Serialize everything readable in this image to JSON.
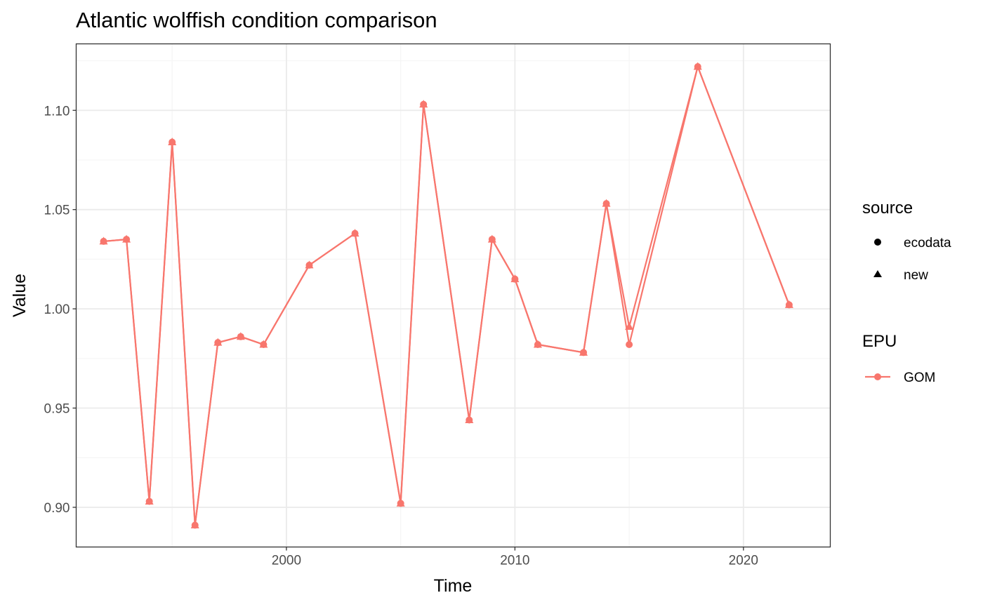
{
  "chart_data": {
    "type": "line",
    "title": "Atlantic wolffish condition comparison",
    "xlabel": "Time",
    "ylabel": "Value",
    "xlim": [
      1990.8,
      2023.8
    ],
    "ylim": [
      0.88,
      1.1335
    ],
    "x_major_ticks": [
      2000,
      2010,
      2020
    ],
    "x_minor_ticks": [
      1995,
      2005,
      2015
    ],
    "y_major_ticks": [
      0.9,
      0.95,
      1.0,
      1.05,
      1.1
    ],
    "y_minor_ticks": [
      0.925,
      0.975,
      1.025,
      1.075,
      1.125
    ],
    "x_tick_labels": [
      "2000",
      "2010",
      "2020"
    ],
    "y_tick_labels": [
      "0.90",
      "0.95",
      "1.00",
      "1.05",
      "1.10"
    ],
    "grid": true,
    "color": "#F8766D",
    "series": [
      {
        "name": "ecodata",
        "shape": "circle",
        "x": [
          1992,
          1993,
          1994,
          1995,
          1996,
          1997,
          1998,
          1999,
          2001,
          2003,
          2005,
          2006,
          2008,
          2009,
          2010,
          2011,
          2013,
          2014,
          2015,
          2018,
          2022
        ],
        "y": [
          1.034,
          1.035,
          0.903,
          1.084,
          0.891,
          0.983,
          0.986,
          0.982,
          1.022,
          1.038,
          0.902,
          1.103,
          0.944,
          1.035,
          1.015,
          0.982,
          0.978,
          1.053,
          0.982,
          1.122,
          1.002
        ]
      },
      {
        "name": "new",
        "shape": "triangle",
        "x": [
          1992,
          1993,
          1994,
          1995,
          1996,
          1997,
          1998,
          1999,
          2001,
          2003,
          2005,
          2006,
          2008,
          2009,
          2010,
          2011,
          2013,
          2014,
          2015,
          2018,
          2022
        ],
        "y": [
          1.034,
          1.035,
          0.903,
          1.084,
          0.891,
          0.983,
          0.986,
          0.982,
          1.022,
          1.038,
          0.902,
          1.103,
          0.944,
          1.035,
          1.015,
          0.982,
          0.978,
          1.053,
          0.991,
          1.122,
          1.002
        ]
      }
    ],
    "legend": {
      "placement": "right",
      "source": {
        "title": "source",
        "items": [
          {
            "label": "ecodata",
            "shape": "circle"
          },
          {
            "label": "new",
            "shape": "triangle"
          }
        ]
      },
      "epu": {
        "title": "EPU",
        "items": [
          {
            "label": "GOM",
            "color": "#F8766D"
          }
        ]
      }
    }
  }
}
